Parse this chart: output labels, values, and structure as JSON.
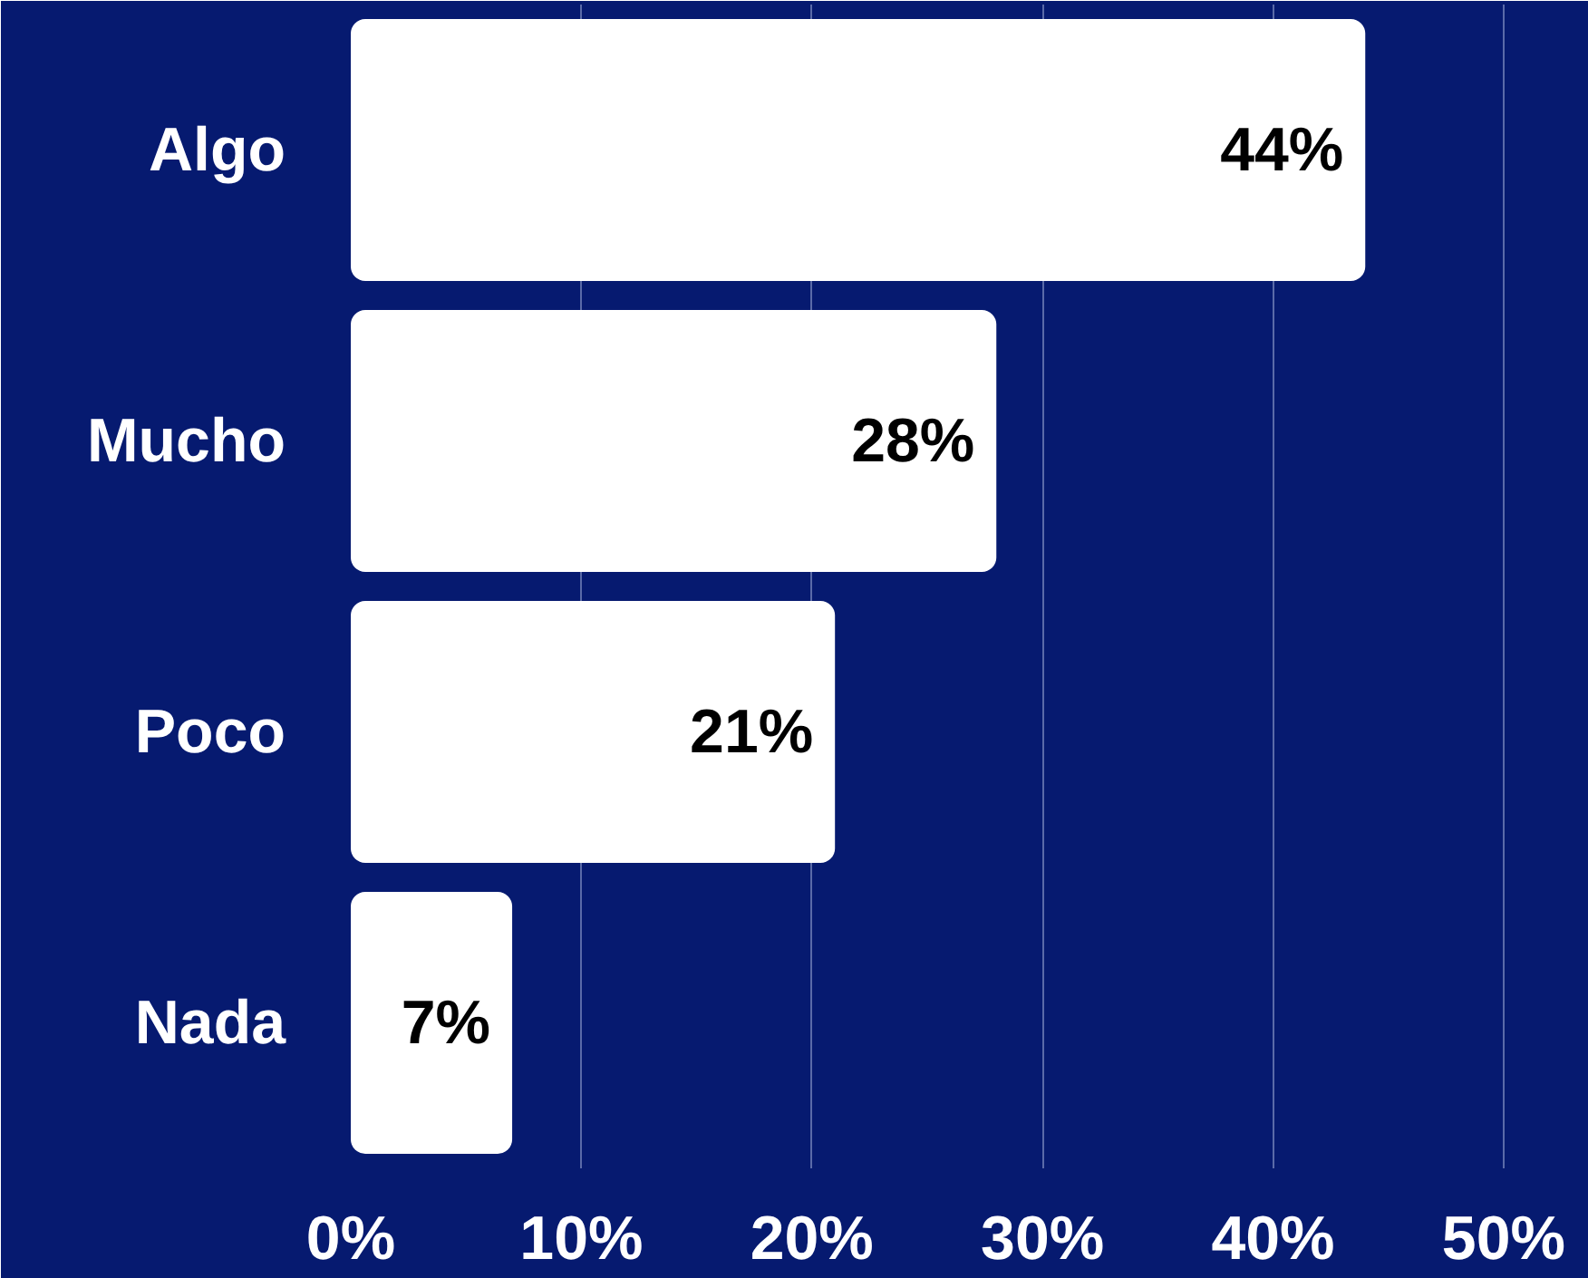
{
  "chart_data": {
    "type": "bar",
    "orientation": "horizontal",
    "categories": [
      "Algo",
      "Mucho",
      "Poco",
      "Nada"
    ],
    "values": [
      44,
      28,
      21,
      7
    ],
    "color": "#ffffff",
    "value_labels": [
      "44%",
      "28%",
      "21%",
      "7%"
    ],
    "xlim": [
      0,
      53.7
    ],
    "xticks": [
      {
        "value": 0,
        "label": "0%"
      },
      {
        "value": 10,
        "label": "10%"
      },
      {
        "value": 20,
        "label": "20%"
      },
      {
        "value": 30,
        "label": "30%"
      },
      {
        "value": 40,
        "label": "40%"
      },
      {
        "value": 50,
        "label": "50%"
      }
    ],
    "grid": "x"
  }
}
